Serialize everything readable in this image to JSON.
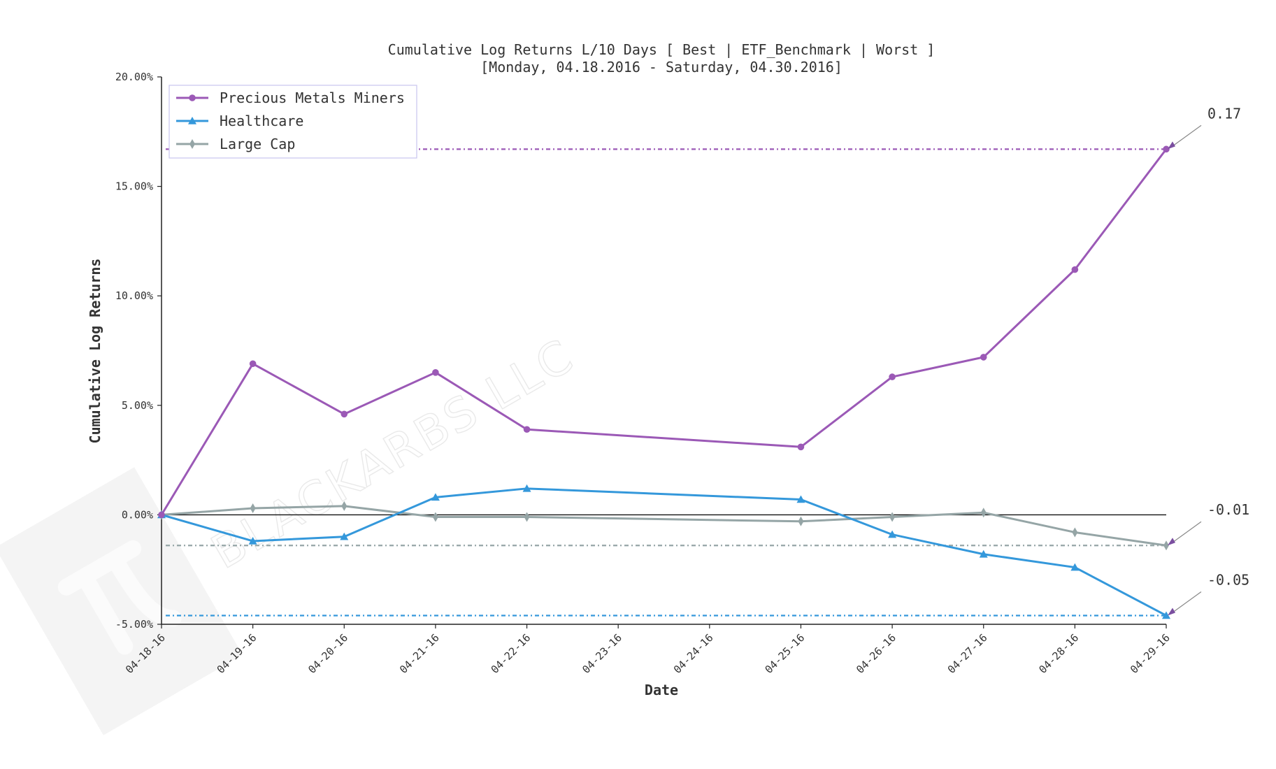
{
  "chart_data": {
    "type": "line",
    "title": "Cumulative Log Returns L/10 Days [ Best | ETF_Benchmark | Worst ]",
    "subtitle": "[Monday, 04.18.2016 - Saturday, 04.30.2016]",
    "xlabel": "Date",
    "ylabel": "Cumulative Log Returns",
    "x": [
      "04-18-16",
      "04-19-16",
      "04-20-16",
      "04-21-16",
      "04-22-16",
      "04-25-16",
      "04-26-16",
      "04-27-16",
      "04-28-16",
      "04-29-16"
    ],
    "x_ticks": [
      "04-18-16",
      "04-19-16",
      "04-20-16",
      "04-21-16",
      "04-22-16",
      "04-23-16",
      "04-24-16",
      "04-25-16",
      "04-26-16",
      "04-27-16",
      "04-28-16",
      "04-29-16"
    ],
    "y_ticks": [
      "-5.00%",
      "0.00%",
      "5.00%",
      "10.00%",
      "15.00%",
      "20.00%"
    ],
    "ylim": [
      -0.05,
      0.2
    ],
    "grid": false,
    "legend_position": "top-left",
    "series": [
      {
        "name": "Precious Metals Miners",
        "color": "#9b59b6",
        "marker": "circle",
        "values": [
          0.0,
          0.069,
          0.046,
          0.065,
          0.039,
          0.031,
          0.063,
          0.072,
          0.112,
          0.167
        ]
      },
      {
        "name": "Healthcare",
        "color": "#3498db",
        "marker": "triangle",
        "values": [
          0.0,
          -0.012,
          -0.01,
          0.008,
          0.012,
          0.007,
          -0.009,
          -0.018,
          -0.024,
          -0.046
        ]
      },
      {
        "name": "Large Cap",
        "color": "#95a5a6",
        "marker": "diamond",
        "values": [
          0.0,
          0.003,
          0.004,
          -0.001,
          -0.001,
          -0.003,
          -0.001,
          0.001,
          -0.008,
          -0.014
        ]
      }
    ],
    "reference_lines": [
      {
        "series": "Precious Metals Miners",
        "value": 0.167,
        "color": "#9b59b6"
      },
      {
        "series": "Large Cap",
        "value": -0.014,
        "color": "#95a5a6"
      },
      {
        "series": "Healthcare",
        "value": -0.046,
        "color": "#3498db"
      }
    ],
    "annotations": [
      {
        "series": "Precious Metals Miners",
        "text": "0.17"
      },
      {
        "series": "Large Cap",
        "text": "-0.01"
      },
      {
        "series": "Healthcare",
        "text": "-0.05"
      }
    ],
    "annotation_arrow_color": "#7b4fa0",
    "zero_line": true,
    "watermark": "BLACKARBS LLC"
  }
}
